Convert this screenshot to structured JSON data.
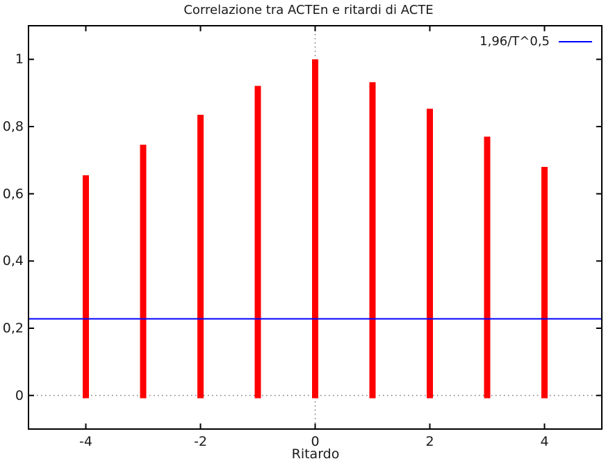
{
  "chart_data": {
    "type": "bar",
    "style": "impulses",
    "title": "Correlazione tra ACTEn e ritardi di ACTE",
    "xlabel": "Ritardo",
    "x": [
      -4,
      -3,
      -2,
      -1,
      0,
      1,
      2,
      3,
      4
    ],
    "values": [
      0.655,
      0.746,
      0.835,
      0.921,
      1.0,
      0.932,
      0.853,
      0.77,
      0.68
    ],
    "reference_line": {
      "label": "1,96/T^0,5",
      "value": 0.228
    },
    "xlim": [
      -5,
      5
    ],
    "ylim": [
      -0.1,
      1.1
    ],
    "xticks": [
      -4,
      -2,
      0,
      2,
      4
    ],
    "xtick_labels": [
      "-4",
      "-2",
      "0",
      "2",
      "4"
    ],
    "yticks": [
      0,
      0.2,
      0.4,
      0.6,
      0.8,
      1
    ],
    "ytick_labels": [
      "0",
      "0,2",
      "0,4",
      "0,6",
      "0,8",
      "1"
    ],
    "grid": "dotted lines at x=0 and y=0 only",
    "legend_position": "top-right-inside",
    "colors": {
      "bar": "#ff0000",
      "reference_line": "#0000ff",
      "axis": "#000000",
      "dotted": "#777777",
      "text": "#1a1a1a",
      "background": "#ffffff"
    }
  }
}
